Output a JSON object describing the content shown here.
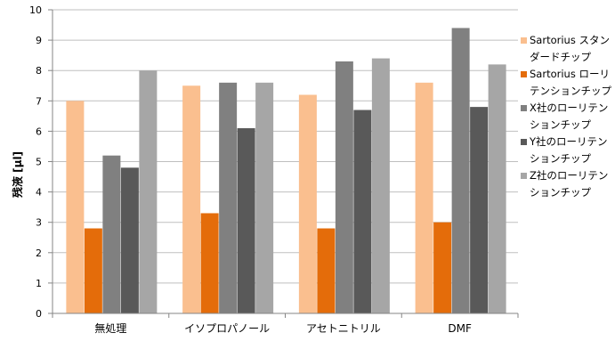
{
  "chart_data": {
    "type": "bar",
    "categories": [
      "無処理",
      "イソプロパノール",
      "アセトニトリル",
      "DMF"
    ],
    "ylabel": "残液 [μl]",
    "ylim": [
      0,
      10
    ],
    "yticks": [
      "0",
      "1",
      "2",
      "3",
      "4",
      "5",
      "6",
      "7",
      "8",
      "9",
      "10"
    ],
    "grid": true,
    "legend_position": "right",
    "series": [
      {
        "name": "Sartorius スタンダードチップ",
        "color": "#FABF8F",
        "values": [
          7.0,
          7.5,
          7.2,
          7.6
        ]
      },
      {
        "name": "Sartorius ローリテンションチップ",
        "color": "#E46C0A",
        "values": [
          2.8,
          3.3,
          2.8,
          3.0
        ]
      },
      {
        "name": "X社のローリテンションチップ",
        "color": "#808080",
        "values": [
          5.2,
          7.6,
          8.3,
          9.4
        ]
      },
      {
        "name": "Y社のローリテンションチップ",
        "color": "#595959",
        "values": [
          4.8,
          6.1,
          6.7,
          6.8
        ]
      },
      {
        "name": "Z社のローリテンションチップ",
        "color": "#A6A6A6",
        "values": [
          8.0,
          7.6,
          8.4,
          8.2
        ]
      }
    ]
  }
}
